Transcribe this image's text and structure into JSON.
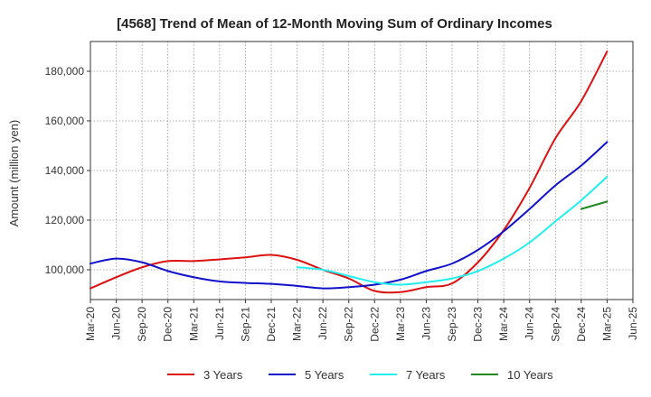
{
  "chart_data": {
    "type": "line",
    "title": "[4568]  Trend of Mean of 12-Month Moving Sum of Ordinary Incomes",
    "xlabel": "",
    "ylabel": "Amount (million yen)",
    "ylim": [
      88000,
      192000
    ],
    "yticks": [
      100000,
      120000,
      140000,
      160000,
      180000
    ],
    "ytick_labels": [
      "100,000",
      "120,000",
      "140,000",
      "160,000",
      "180,000"
    ],
    "categories": [
      "Mar-20",
      "Jun-20",
      "Sep-20",
      "Dec-20",
      "Mar-21",
      "Jun-21",
      "Sep-21",
      "Dec-21",
      "Mar-22",
      "Jun-22",
      "Sep-22",
      "Dec-22",
      "Mar-23",
      "Jun-23",
      "Sep-23",
      "Dec-23",
      "Mar-24",
      "Jun-24",
      "Sep-24",
      "Dec-24",
      "Mar-25",
      "Jun-25"
    ],
    "grid": true,
    "legend_position": "bottom",
    "series": [
      {
        "name": "3 Years",
        "color": "#dd1111",
        "values": [
          92500,
          97000,
          101000,
          103500,
          103500,
          104200,
          105000,
          106000,
          104000,
          100000,
          96500,
          91500,
          91000,
          93000,
          94500,
          103000,
          116000,
          133000,
          153000,
          168000,
          188000,
          null
        ]
      },
      {
        "name": "5 Years",
        "color": "#1111cc",
        "values": [
          102500,
          104500,
          103000,
          99500,
          97000,
          95300,
          94700,
          94300,
          93500,
          92500,
          93000,
          94000,
          96000,
          99500,
          102500,
          108000,
          115500,
          124500,
          134000,
          142000,
          151500,
          null
        ]
      },
      {
        "name": "7 Years",
        "color": "#22eeee",
        "values": [
          null,
          null,
          null,
          null,
          null,
          null,
          null,
          null,
          101000,
          100000,
          97500,
          95000,
          94000,
          95000,
          96500,
          99500,
          104500,
          111000,
          119500,
          128000,
          137500,
          null
        ]
      },
      {
        "name": "10 Years",
        "color": "#228822",
        "values": [
          null,
          null,
          null,
          null,
          null,
          null,
          null,
          null,
          null,
          null,
          null,
          null,
          null,
          null,
          null,
          null,
          null,
          null,
          null,
          124500,
          127500,
          null
        ]
      }
    ]
  }
}
